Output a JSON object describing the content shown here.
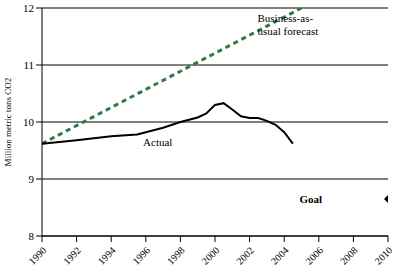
{
  "chart_data": {
    "type": "line",
    "ylabel": "Million metric tons CO2",
    "xlim": [
      1990,
      2010
    ],
    "xticks": [
      1990,
      1992,
      1994,
      1996,
      1998,
      2000,
      2002,
      2004,
      2006,
      2008,
      2010
    ],
    "ylim": [
      8,
      12
    ],
    "yticks": [
      8,
      9,
      10,
      11,
      12
    ],
    "grid": true,
    "series": [
      {
        "name": "Business-as-usual forecast",
        "color": "#2f7a45",
        "line_style": "dashed",
        "x": [
          1990,
          2005
        ],
        "values": [
          9.62,
          12.0
        ]
      },
      {
        "name": "Actual",
        "color": "#000000",
        "line_style": "solid",
        "x": [
          1990,
          1992,
          1994,
          1995.5,
          1997,
          1998,
          1999,
          1999.5,
          2000,
          2000.5,
          2001,
          2001.5,
          2002,
          2002.5,
          2003,
          2003.5,
          2004,
          2004.5
        ],
        "values": [
          9.62,
          9.68,
          9.75,
          9.78,
          9.9,
          10.0,
          10.08,
          10.15,
          10.3,
          10.33,
          10.22,
          10.1,
          10.07,
          10.07,
          10.02,
          9.95,
          9.82,
          9.62
        ]
      },
      {
        "name": "Goal",
        "type": "scatter",
        "marker": "diamond",
        "color": "#000000",
        "x": [
          2010
        ],
        "values": [
          8.65
        ]
      }
    ]
  }
}
